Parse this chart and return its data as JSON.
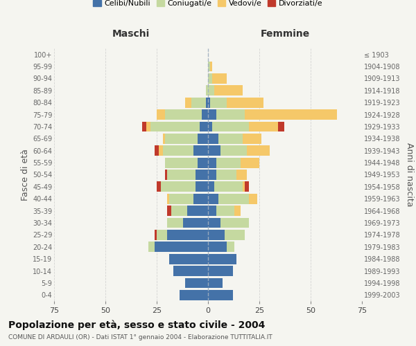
{
  "age_groups": [
    "0-4",
    "5-9",
    "10-14",
    "15-19",
    "20-24",
    "25-29",
    "30-34",
    "35-39",
    "40-44",
    "45-49",
    "50-54",
    "55-59",
    "60-64",
    "65-69",
    "70-74",
    "75-79",
    "80-84",
    "85-89",
    "90-94",
    "95-99",
    "100+"
  ],
  "birth_years": [
    "1999-2003",
    "1994-1998",
    "1989-1993",
    "1984-1988",
    "1979-1983",
    "1974-1978",
    "1969-1973",
    "1964-1968",
    "1959-1963",
    "1954-1958",
    "1949-1953",
    "1944-1948",
    "1939-1943",
    "1934-1938",
    "1929-1933",
    "1924-1928",
    "1919-1923",
    "1914-1918",
    "1909-1913",
    "1904-1908",
    "≤ 1903"
  ],
  "maschi": {
    "celibi": [
      14,
      11,
      17,
      19,
      26,
      20,
      12,
      10,
      7,
      6,
      6,
      5,
      7,
      5,
      4,
      3,
      1,
      0,
      0,
      0,
      0
    ],
    "coniugati": [
      0,
      0,
      0,
      0,
      3,
      5,
      8,
      8,
      12,
      17,
      14,
      16,
      15,
      16,
      24,
      18,
      7,
      1,
      0,
      0,
      0
    ],
    "vedovi": [
      0,
      0,
      0,
      0,
      0,
      0,
      0,
      0,
      1,
      0,
      0,
      0,
      2,
      1,
      2,
      4,
      3,
      0,
      0,
      0,
      0
    ],
    "divorziati": [
      0,
      0,
      0,
      0,
      0,
      1,
      0,
      2,
      0,
      2,
      1,
      0,
      2,
      0,
      2,
      0,
      0,
      0,
      0,
      0,
      0
    ]
  },
  "femmine": {
    "nubili": [
      12,
      7,
      12,
      14,
      9,
      8,
      6,
      4,
      5,
      3,
      4,
      4,
      6,
      5,
      2,
      4,
      1,
      0,
      0,
      0,
      0
    ],
    "coniugate": [
      0,
      0,
      0,
      0,
      4,
      10,
      14,
      9,
      15,
      14,
      10,
      12,
      13,
      12,
      18,
      14,
      8,
      3,
      2,
      1,
      0
    ],
    "vedove": [
      0,
      0,
      0,
      0,
      0,
      0,
      0,
      3,
      4,
      1,
      5,
      9,
      11,
      9,
      14,
      45,
      18,
      14,
      7,
      1,
      0
    ],
    "divorziate": [
      0,
      0,
      0,
      0,
      0,
      0,
      0,
      0,
      0,
      2,
      0,
      0,
      0,
      0,
      3,
      0,
      0,
      0,
      0,
      0,
      0
    ]
  },
  "colors": {
    "celibi_nubili": "#4472a8",
    "coniugati": "#c5d9a0",
    "vedovi": "#f5c869",
    "divorziati": "#c0392b"
  },
  "xlim": 75,
  "title": "Popolazione per età, sesso e stato civile - 2004",
  "subtitle": "COMUNE DI ARDAULI (OR) - Dati ISTAT 1° gennaio 2004 - Elaborazione TUTTITALIA.IT",
  "xlabel_left": "Maschi",
  "xlabel_right": "Femmine",
  "ylabel_left": "Fasce di età",
  "ylabel_right": "Anni di nascita",
  "legend_labels": [
    "Celibi/Nubili",
    "Coniugati/e",
    "Vedovi/e",
    "Divorziati/e"
  ],
  "bg_color": "#f5f5f0",
  "grid_color": "#cccccc"
}
